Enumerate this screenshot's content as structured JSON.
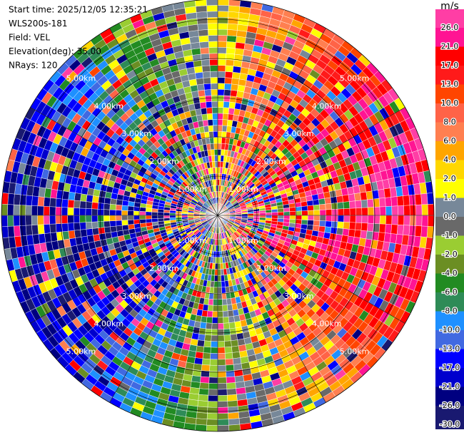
{
  "header": {
    "lines": [
      "Start time: 2025/12/05 12:35:21",
      "WLS200s-181",
      "Field: VEL",
      "Elevation(deg): 35.00",
      "NRays: 120"
    ]
  },
  "rings": {
    "labels": [
      "1.00km",
      "2.00km",
      "3.00km",
      "4.00km",
      "5.00km"
    ]
  },
  "colorbar": {
    "title": "m/s",
    "labels": [
      "26.0",
      "21.0",
      "17.0",
      "13.0",
      "10.0",
      "8.0",
      "6.0",
      "4.0",
      "2.0",
      "1.0",
      "0.0",
      "-1.0",
      "-2.0",
      "-4.0",
      "-6.0",
      "-8.0",
      "-10.0",
      "-13.0",
      "-17.0",
      "-21.0",
      "-26.0",
      "-30.0"
    ],
    "colors": [
      "#ff3ea5",
      "#ff1493",
      "#ff0000",
      "#ff1a1a",
      "#ff4500",
      "#ff6347",
      "#ff7f50",
      "#ffa500",
      "#ffd700",
      "#ffff00",
      "#778899",
      "#696969",
      "#9acd32",
      "#6b8e23",
      "#228b22",
      "#2e8b57",
      "#1e90ff",
      "#4169e1",
      "#0000ff",
      "#0000cd",
      "#000080",
      "#191970"
    ]
  }
}
